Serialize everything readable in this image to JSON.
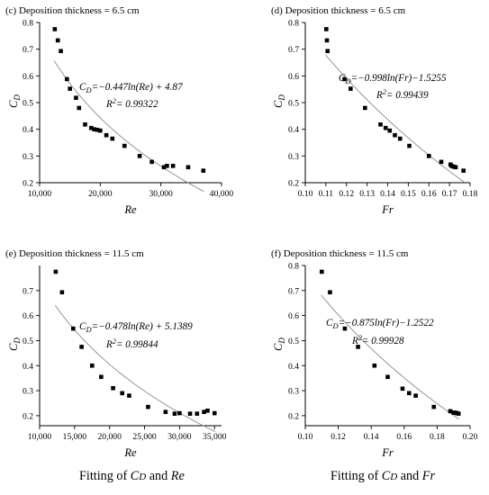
{
  "chart_data": [
    {
      "type": "scatter",
      "panel_label": "(c) Deposition thickness = 6.5 cm",
      "xlabel": "Re",
      "ylabel": "C",
      "ylabel_sub": "D",
      "xlim": [
        10000,
        40000
      ],
      "ylim": [
        0.2,
        0.8
      ],
      "xticks": [
        10000,
        20000,
        30000,
        40000
      ],
      "xtick_labels": [
        "10,000",
        "20,000",
        "30,000",
        "40,000"
      ],
      "yticks": [
        0.2,
        0.3,
        0.4,
        0.5,
        0.6,
        0.7,
        0.8
      ],
      "ytick_labels": [
        "0.2",
        "0.3",
        "0.4",
        "0.5",
        "0.6",
        "0.7",
        "0.8"
      ],
      "equation_pre": "C",
      "equation_sub": "D",
      "equation_post": "=−0.447ln(Re) + 4.87",
      "r2_label": "R",
      "r2_sup": "2",
      "r2_value": "= 0.99322",
      "fit": {
        "a": -0.447,
        "b": 4.87,
        "var": "ln"
      },
      "points": [
        [
          12500,
          0.775
        ],
        [
          13000,
          0.733
        ],
        [
          13500,
          0.693
        ],
        [
          14500,
          0.588
        ],
        [
          15000,
          0.552
        ],
        [
          16000,
          0.518
        ],
        [
          16500,
          0.48
        ],
        [
          17500,
          0.418
        ],
        [
          18500,
          0.405
        ],
        [
          19000,
          0.4
        ],
        [
          19500,
          0.398
        ],
        [
          20000,
          0.395
        ],
        [
          21000,
          0.378
        ],
        [
          22000,
          0.365
        ],
        [
          24000,
          0.338
        ],
        [
          26500,
          0.3
        ],
        [
          28500,
          0.278
        ],
        [
          30500,
          0.258
        ],
        [
          31000,
          0.263
        ],
        [
          32000,
          0.263
        ],
        [
          34500,
          0.258
        ],
        [
          37000,
          0.245
        ]
      ]
    },
    {
      "type": "scatter",
      "panel_label": "(d) Deposition thickness = 6.5 cm",
      "xlabel": "Fr",
      "ylabel": "C",
      "ylabel_sub": "D",
      "xlim": [
        0.1,
        0.18
      ],
      "ylim": [
        0.2,
        0.8
      ],
      "xticks": [
        0.1,
        0.11,
        0.12,
        0.13,
        0.14,
        0.15,
        0.16,
        0.17,
        0.18
      ],
      "xtick_labels": [
        "0.10",
        "0.11",
        "0.12",
        "0.13",
        "0.14",
        "0.15",
        "0.16",
        "0.17",
        "0.18"
      ],
      "yticks": [
        0.2,
        0.3,
        0.4,
        0.5,
        0.6,
        0.7,
        0.8
      ],
      "ytick_labels": [
        "0.2",
        "0.3",
        "0.4",
        "0.5",
        "0.6",
        "0.7",
        "0.8"
      ],
      "equation_pre": "C",
      "equation_sub": "D",
      "equation_post": "=−0.998ln(Fr)−1.5255",
      "r2_label": "R",
      "r2_sup": "2",
      "r2_value": "= 0.99439",
      "fit": {
        "a": -0.998,
        "b": -1.5255,
        "var": "ln"
      },
      "points": [
        [
          0.1102,
          0.775
        ],
        [
          0.1105,
          0.733
        ],
        [
          0.1108,
          0.693
        ],
        [
          0.119,
          0.588
        ],
        [
          0.122,
          0.552
        ],
        [
          0.129,
          0.48
        ],
        [
          0.1365,
          0.418
        ],
        [
          0.139,
          0.405
        ],
        [
          0.141,
          0.395
        ],
        [
          0.1435,
          0.378
        ],
        [
          0.146,
          0.365
        ],
        [
          0.1505,
          0.338
        ],
        [
          0.16,
          0.3
        ],
        [
          0.166,
          0.278
        ],
        [
          0.1705,
          0.268
        ],
        [
          0.171,
          0.263
        ],
        [
          0.172,
          0.26
        ],
        [
          0.173,
          0.258
        ],
        [
          0.1768,
          0.245
        ]
      ]
    },
    {
      "type": "scatter",
      "panel_label": "(e) Deposition thickness = 11.5 cm",
      "xlabel": "Re",
      "ylabel": "C",
      "ylabel_sub": "D",
      "xlim": [
        10000,
        36000
      ],
      "ylim": [
        0.16,
        0.8
      ],
      "xticks": [
        10000,
        15000,
        20000,
        25000,
        30000,
        35000
      ],
      "xtick_labels": [
        "10,000",
        "15,000",
        "20,000",
        "25,000",
        "30,000",
        "35,000"
      ],
      "yticks": [
        0.2,
        0.3,
        0.4,
        0.5,
        0.6,
        0.7
      ],
      "ytick_labels": [
        "0.2",
        "0.3",
        "0.4",
        "0.5",
        "0.6",
        "0.7"
      ],
      "equation_pre": "C",
      "equation_sub": "D",
      "equation_post": "=−0.478ln(Re) + 5.1389",
      "r2_label": "R",
      "r2_sup": "2",
      "r2_value": "= 0.99844",
      "fit": {
        "a": -0.478,
        "b": 5.1389,
        "var": "ln"
      },
      "points": [
        [
          12300,
          0.775
        ],
        [
          13200,
          0.693
        ],
        [
          14800,
          0.548
        ],
        [
          16000,
          0.475
        ],
        [
          17500,
          0.4
        ],
        [
          18800,
          0.355
        ],
        [
          20500,
          0.31
        ],
        [
          21800,
          0.29
        ],
        [
          22800,
          0.28
        ],
        [
          25500,
          0.235
        ],
        [
          28000,
          0.215
        ],
        [
          29300,
          0.208
        ],
        [
          30000,
          0.21
        ],
        [
          31500,
          0.208
        ],
        [
          32500,
          0.208
        ],
        [
          33500,
          0.215
        ],
        [
          34000,
          0.22
        ],
        [
          35000,
          0.21
        ]
      ]
    },
    {
      "type": "scatter",
      "panel_label": "(f) Deposition thickness = 11.5 cm",
      "xlabel": "Fr",
      "ylabel": "C",
      "ylabel_sub": "D",
      "xlim": [
        0.1,
        0.2
      ],
      "ylim": [
        0.16,
        0.8
      ],
      "xticks": [
        0.1,
        0.12,
        0.14,
        0.16,
        0.18,
        0.2
      ],
      "xtick_labels": [
        "0.10",
        "0.12",
        "0.14",
        "0.16",
        "0.18",
        "0.20"
      ],
      "yticks": [
        0.2,
        0.3,
        0.4,
        0.5,
        0.6,
        0.7,
        0.8
      ],
      "ytick_labels": [
        "0.2",
        "0.3",
        "0.4",
        "0.5",
        "0.6",
        "0.7",
        "0.8"
      ],
      "equation_pre": "C",
      "equation_sub": "D",
      "equation_post": "=−0.875ln(Fr)−1.2522",
      "r2_label": "R",
      "r2_sup": "2",
      "r2_value": "= 0.99928",
      "fit": {
        "a": -0.875,
        "b": -1.2522,
        "var": "ln"
      },
      "points": [
        [
          0.11,
          0.775
        ],
        [
          0.115,
          0.693
        ],
        [
          0.124,
          0.548
        ],
        [
          0.132,
          0.475
        ],
        [
          0.142,
          0.4
        ],
        [
          0.15,
          0.355
        ],
        [
          0.159,
          0.308
        ],
        [
          0.163,
          0.29
        ],
        [
          0.167,
          0.28
        ],
        [
          0.178,
          0.235
        ],
        [
          0.188,
          0.218
        ],
        [
          0.19,
          0.212
        ],
        [
          0.191,
          0.212
        ],
        [
          0.192,
          0.21
        ],
        [
          0.193,
          0.208
        ]
      ]
    }
  ],
  "captions": {
    "left": {
      "pre": "Fitting of ",
      "sym": "C",
      "sub": "D",
      "mid": " and ",
      "var": "Re"
    },
    "right": {
      "pre": "Fitting of ",
      "sym": "C",
      "sub": "D",
      "mid": " and ",
      "var": "Fr"
    }
  }
}
